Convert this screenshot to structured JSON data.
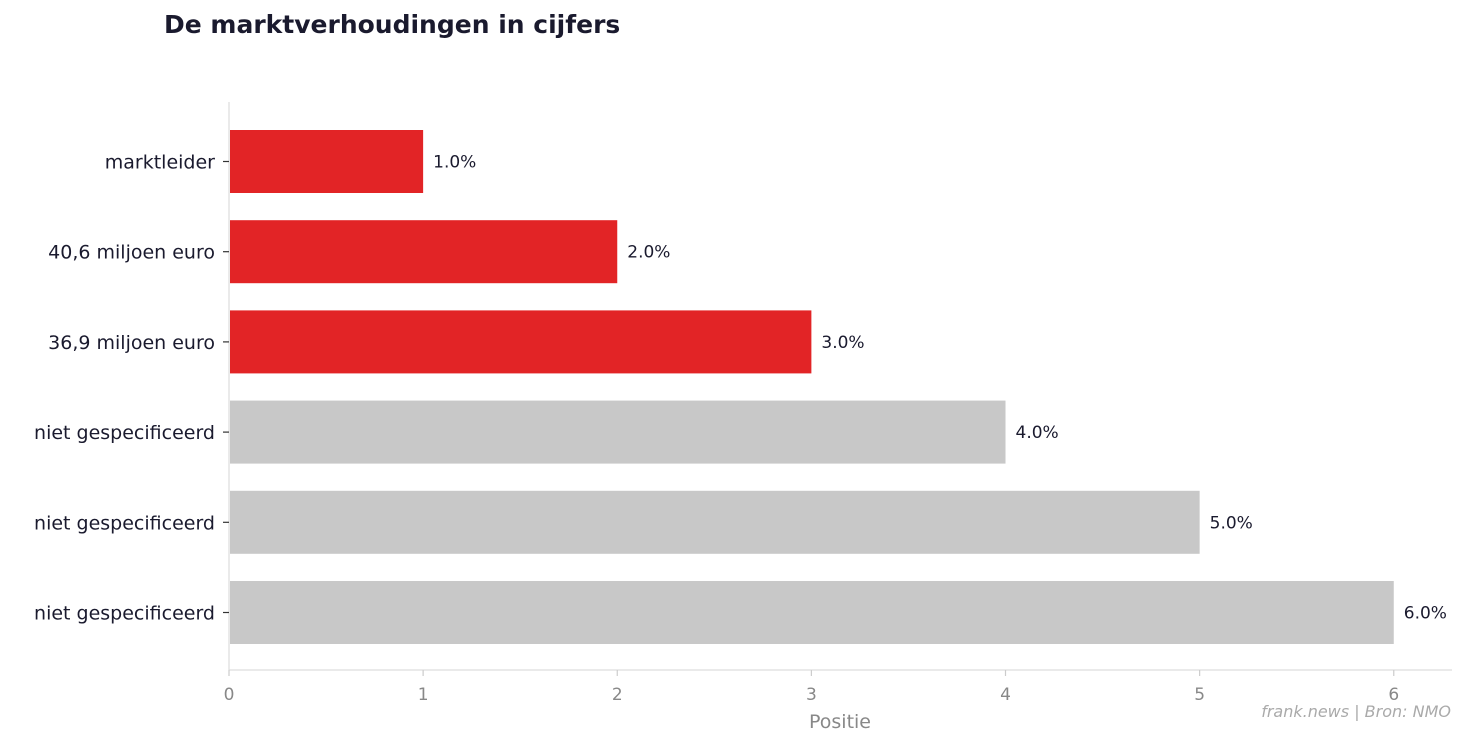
{
  "chart_data": {
    "type": "bar",
    "orientation": "horizontal",
    "title": "De marktverhoudingen in cijfers",
    "xlabel": "Positie",
    "ylabel": "",
    "categories": [
      "marktleider",
      "40,6 miljoen euro",
      "36,9 miljoen euro",
      "niet gespecificeerd",
      "niet gespecificeerd",
      "niet gespecificeerd"
    ],
    "values": [
      1,
      2,
      3,
      4,
      5,
      6
    ],
    "data_labels": [
      "1.0%",
      "2.0%",
      "3.0%",
      "4.0%",
      "5.0%",
      "6.0%"
    ],
    "bar_colors": [
      "#e22426",
      "#e22426",
      "#e22426",
      "#c8c8c8",
      "#c8c8c8",
      "#c8c8c8"
    ],
    "xlim": [
      0,
      6.3
    ],
    "xticks": [
      0,
      1,
      2,
      3,
      4,
      5,
      6
    ],
    "grid": false,
    "legend": "none"
  },
  "footer": {
    "source": "frank.news | Bron: NMO"
  },
  "colors": {
    "title": "#1a1a2e",
    "axis_text": "#888888",
    "spine": "#dddddd",
    "highlight": "#e22426",
    "neutral": "#c8c8c8"
  }
}
